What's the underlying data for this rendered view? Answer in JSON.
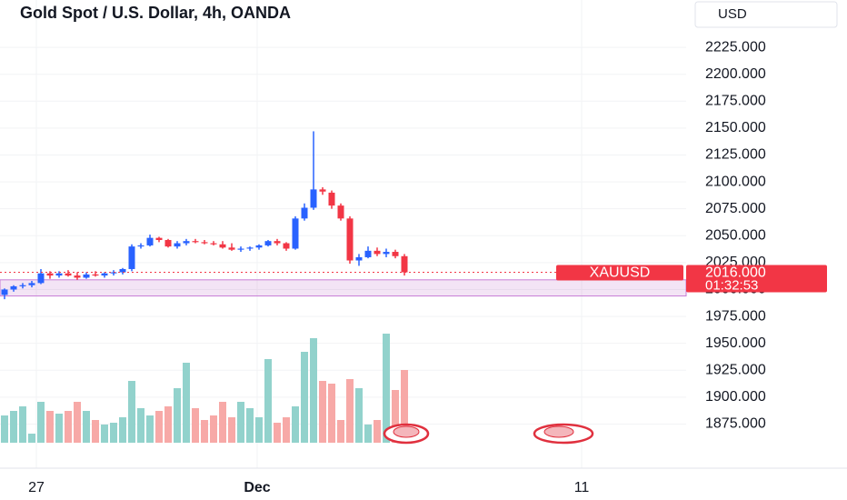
{
  "chart_data": {
    "type": "candlestick",
    "title": "Gold Spot / U.S. Dollar, 4h, OANDA",
    "currency": "USD",
    "symbol": "XAUUSD",
    "last_price": {
      "value": 2016,
      "label": "2016.000"
    },
    "countdown": "01:32:53",
    "up_color": "#2962ff",
    "down_color": "#f23645",
    "volume_up_color": "#92d2cc",
    "volume_down_color": "#f7a9a7",
    "zone": [
      1994,
      2009
    ],
    "xlim": [
      -0.5,
      75
    ],
    "xticks": [
      {
        "value": 3.5,
        "label": "27"
      },
      {
        "value": 27.8,
        "label": "Dec"
      },
      {
        "value": 63.5,
        "label": "11"
      }
    ],
    "ylim": [
      1834,
      2269
    ],
    "yticks": [
      {
        "value": 1875,
        "label": "1875.000"
      },
      {
        "value": 1900,
        "label": "1900.000"
      },
      {
        "value": 1925,
        "label": "1925.000"
      },
      {
        "value": 1950,
        "label": "1950.000"
      },
      {
        "value": 1975,
        "label": "1975.000"
      },
      {
        "value": 2000,
        "label": "2000.000"
      },
      {
        "value": 2025,
        "label": "2025.000"
      },
      {
        "value": 2050,
        "label": "2050.000"
      },
      {
        "value": 2075,
        "label": "2075.000"
      },
      {
        "value": 2100,
        "label": "2100.000"
      },
      {
        "value": 2125,
        "label": "2125.000"
      },
      {
        "value": 2150,
        "label": "2150.000"
      },
      {
        "value": 2175,
        "label": "2175.000"
      },
      {
        "value": 2200,
        "label": "2200.000"
      },
      {
        "value": 2225,
        "label": "2225.000"
      }
    ],
    "open": [
      1995,
      2000,
      2003,
      2004,
      2006,
      2015,
      2013,
      2015,
      2013,
      2011,
      2014,
      2013,
      2015,
      2016,
      2019,
      2040,
      2041,
      2048,
      2046,
      2040,
      2043,
      2045,
      2044,
      2043,
      2042,
      2039,
      2037,
      2038,
      2039,
      2041,
      2045,
      2043,
      2038,
      2066,
      2076,
      2093,
      2090,
      2078,
      2066,
      2027,
      2030,
      2036,
      2033,
      2035,
      2031
    ],
    "high": [
      2001,
      2004,
      2006,
      2008,
      2019,
      2017,
      2017,
      2018,
      2016,
      2016,
      2017,
      2016,
      2018,
      2020,
      2042,
      2043,
      2051,
      2049,
      2047,
      2045,
      2047,
      2047,
      2046,
      2045,
      2045,
      2043,
      2040,
      2040,
      2042,
      2046,
      2047,
      2044,
      2068,
      2080,
      2147,
      2095,
      2092,
      2080,
      2068,
      2033,
      2040,
      2039,
      2038,
      2037,
      2033
    ],
    "low": [
      1991,
      1998,
      2001,
      2002,
      2005,
      2010,
      2011,
      2012,
      2009,
      2010,
      2012,
      2011,
      2013,
      2014,
      2017,
      2038,
      2040,
      2044,
      2039,
      2038,
      2041,
      2043,
      2042,
      2041,
      2038,
      2036,
      2035,
      2036,
      2037,
      2040,
      2041,
      2036,
      2037,
      2064,
      2074,
      2088,
      2075,
      2064,
      2024,
      2022,
      2029,
      2031,
      2030,
      2029,
      2013
    ],
    "close": [
      2000,
      2003,
      2004,
      2006,
      2015,
      2013,
      2015,
      2013,
      2011,
      2014,
      2013,
      2015,
      2016,
      2019,
      2040,
      2041,
      2048,
      2046,
      2040,
      2043,
      2045,
      2044,
      2043,
      2042,
      2039,
      2037,
      2038,
      2039,
      2041,
      2045,
      2043,
      2038,
      2066,
      2076,
      2093,
      2091,
      2078,
      2066,
      2027,
      2030,
      2036,
      2033,
      2035,
      2031,
      2016
    ],
    "volume": [
      30,
      35,
      40,
      10,
      45,
      35,
      32,
      35,
      45,
      35,
      25,
      20,
      22,
      28,
      68,
      38,
      30,
      35,
      40,
      60,
      88,
      38,
      25,
      30,
      45,
      28,
      45,
      38,
      28,
      92,
      22,
      28,
      40,
      100,
      115,
      68,
      65,
      25,
      70,
      60,
      20,
      25,
      120,
      58,
      80
    ]
  }
}
